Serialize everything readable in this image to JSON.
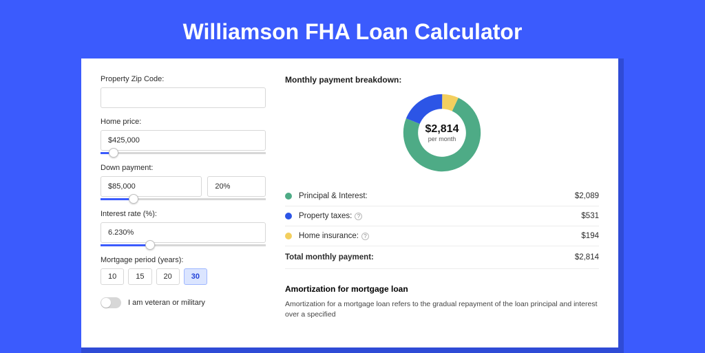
{
  "title": "Williamson FHA Loan Calculator",
  "colors": {
    "page_bg": "#3b5bfd",
    "shadow_bg": "#2f4bd6",
    "card_bg": "#ffffff",
    "text": "#2b2b2b",
    "accent": "#3b5bfd"
  },
  "form": {
    "zip": {
      "label": "Property Zip Code:",
      "value": ""
    },
    "home_price": {
      "label": "Home price:",
      "value": "$425,000",
      "slider_pct": 8
    },
    "down_payment": {
      "label": "Down payment:",
      "value": "$85,000",
      "pct": "20%",
      "slider_pct": 20
    },
    "interest": {
      "label": "Interest rate (%):",
      "value": "6.230%",
      "slider_pct": 30
    },
    "period": {
      "label": "Mortgage period (years):",
      "options": [
        "10",
        "15",
        "20",
        "30"
      ],
      "selected": "30"
    },
    "veteran": {
      "label": "I am veteran or military",
      "on": false
    }
  },
  "breakdown": {
    "heading": "Monthly payment breakdown:",
    "donut": {
      "amount": "$2,814",
      "per": "per month",
      "segments": [
        {
          "color": "#4eab86",
          "pct": 74
        },
        {
          "color": "#2c55e6",
          "pct": 19
        },
        {
          "color": "#f3cf5e",
          "pct": 7
        }
      ]
    },
    "rows": [
      {
        "color": "#4eab86",
        "label": "Principal & Interest:",
        "value": "$2,089",
        "info": false
      },
      {
        "color": "#2c55e6",
        "label": "Property taxes:",
        "value": "$531",
        "info": true
      },
      {
        "color": "#f3cf5e",
        "label": "Home insurance:",
        "value": "$194",
        "info": true
      }
    ],
    "total": {
      "label": "Total monthly payment:",
      "value": "$2,814"
    }
  },
  "amortization": {
    "title": "Amortization for mortgage loan",
    "text": "Amortization for a mortgage loan refers to the gradual repayment of the loan principal and interest over a specified"
  }
}
